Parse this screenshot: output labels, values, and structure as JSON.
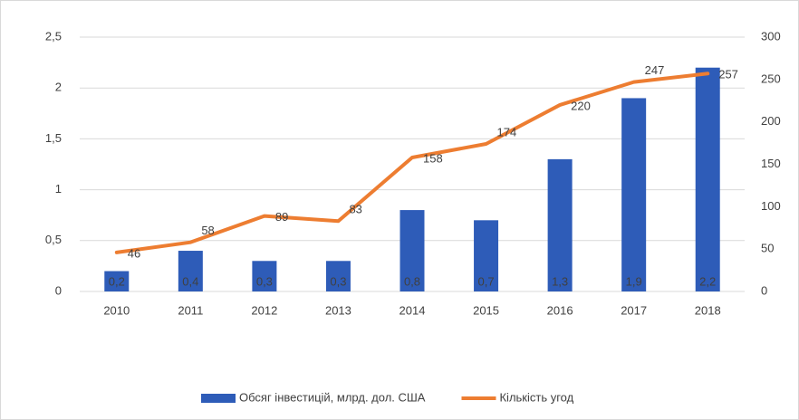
{
  "chart_data": {
    "type": "bar",
    "categories": [
      "2010",
      "2011",
      "2012",
      "2013",
      "2014",
      "2015",
      "2016",
      "2017",
      "2018"
    ],
    "series": [
      {
        "name": "Обсяг інвестицій, млрд. дол. США",
        "color": "#2e5cb8",
        "values": [
          0.2,
          0.4,
          0.3,
          0.3,
          0.8,
          0.7,
          1.3,
          1.9,
          2.2
        ],
        "value_labels": [
          "0,2",
          "0,4",
          "0,3",
          "0,3",
          "0,8",
          "0,7",
          "1,3",
          "1,9",
          "2,2"
        ]
      },
      {
        "name": "Кількість угод",
        "color": "#ed7d31",
        "type": "line",
        "axis": "y2",
        "values": [
          46,
          58,
          89,
          83,
          158,
          174,
          220,
          247,
          257
        ]
      }
    ],
    "ylim": [
      0,
      2.5
    ],
    "yticks": [
      0,
      {
        "value": 0.5,
        "label": "0,5"
      },
      1,
      {
        "value": 1.5,
        "label": "1,5"
      },
      2,
      {
        "value": 2.5,
        "label": "2,5"
      }
    ],
    "y2lim": [
      0,
      300
    ],
    "y2ticks": [
      0,
      50,
      100,
      150,
      200,
      250,
      300
    ],
    "grid": true,
    "legend": "bottom"
  }
}
